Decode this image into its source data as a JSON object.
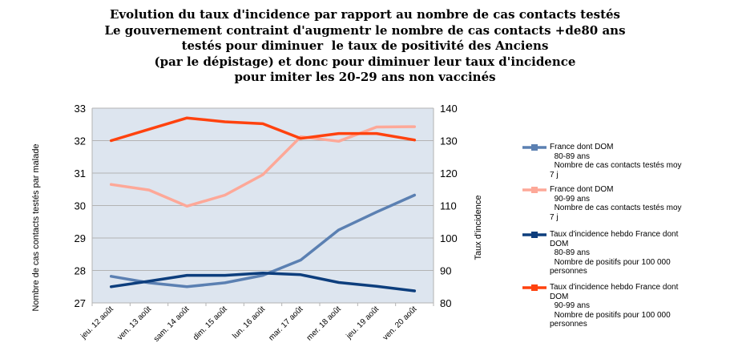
{
  "chart_data": {
    "type": "line",
    "title_lines": [
      "Evolution du taux d'incidence par rapport au nombre de cas contacts testés",
      "Le gouvernement contraint d'augmentr le nombre de cas contacts +de80 ans",
      "testés pour diminuer  le taux de positivité des Anciens",
      "(par le dépistage) et donc pour diminuer leur taux d'incidence",
      "pour imiter les 20-29 ans non vaccinés"
    ],
    "categories": [
      "jeu. 12 août",
      "ven. 13 août",
      "sam. 14 août",
      "dim. 15 août",
      "lun. 16 août",
      "mar. 17 août",
      "mer. 18 août",
      "jeu. 19 août",
      "ven. 20 août"
    ],
    "ylabel_left": "Nombre de cas contacts testés par malade",
    "ylabel_right": "Taux d'incidence",
    "ylim_left": [
      27,
      33
    ],
    "ylim_right": [
      80,
      140
    ],
    "yticks_left": [
      27,
      28,
      29,
      30,
      31,
      32,
      33
    ],
    "yticks_right": [
      80,
      90,
      100,
      110,
      120,
      130,
      140
    ],
    "grid": true,
    "legend_position": "right",
    "series": [
      {
        "name": "France dont DOM\n  80-89 ans\n  Nombre de cas contacts testés moy\n7 j",
        "axis": "left",
        "color": "#5b80b2",
        "values": [
          27.82,
          27.62,
          27.5,
          27.62,
          27.85,
          28.32,
          29.25,
          29.8,
          30.32
        ]
      },
      {
        "name": "France dont DOM\n  90-99 ans\n  Nombre de cas contacts testés moy\n7 j",
        "axis": "left",
        "color": "#fda898",
        "values": [
          30.65,
          30.48,
          29.98,
          30.32,
          30.95,
          32.12,
          31.98,
          32.42,
          32.43
        ]
      },
      {
        "name": "Taux d'incidence hebdo France dont\nDOM\n  80-89 ans\n  Nombre de positifs pour 100 000\npersonnes",
        "axis": "right",
        "color": "#0d3e7d",
        "values": [
          85,
          86.7,
          88.5,
          88.5,
          89.2,
          88.7,
          86.3,
          85.1,
          83.7
        ]
      },
      {
        "name": "Taux d'incidence hebdo France dont\nDOM\n  90-99 ans\n  Nombre de positifs pour 100 000\npersonnes",
        "axis": "right",
        "color": "#ff420e",
        "values": [
          130,
          133.5,
          137,
          135.8,
          135.2,
          130.7,
          132.2,
          132.2,
          130.2
        ]
      }
    ]
  }
}
